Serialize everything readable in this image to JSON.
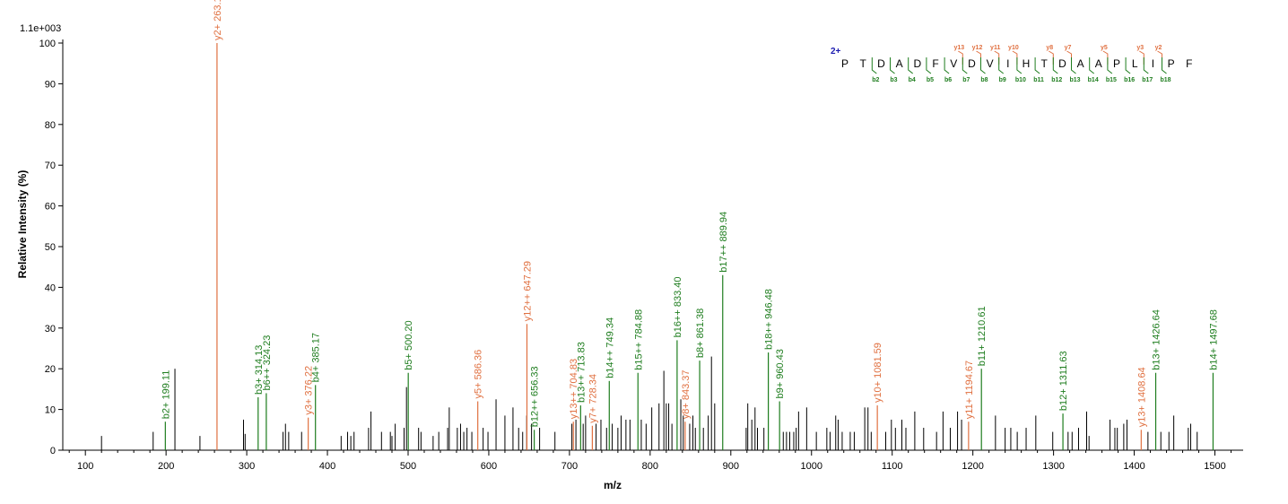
{
  "chart_data": {
    "type": "bar",
    "ylabel": "Relative   Intensity (%)",
    "xlabel": "m/z",
    "scale_label": "1.1e+003",
    "charge_label": "2+",
    "xlim": [
      72,
      1535
    ],
    "ylim": [
      0,
      100
    ],
    "x_ticks": [
      100,
      200,
      300,
      400,
      500,
      600,
      700,
      800,
      900,
      1000,
      1100,
      1200,
      1300,
      1400,
      1500
    ],
    "y_ticks": [
      0,
      10,
      20,
      30,
      40,
      50,
      60,
      70,
      80,
      90,
      100
    ],
    "colors": {
      "b": "#1e7d1e",
      "y": "#e07040",
      "other": "#000000"
    },
    "peptide_residues": [
      "P",
      "T",
      "D",
      "A",
      "D",
      "F",
      "V",
      "D",
      "V",
      "I",
      "H",
      "T",
      "D",
      "A",
      "A",
      "P",
      "L",
      "I",
      "P",
      "F"
    ],
    "b_fragments": [
      {
        "after": 2,
        "label": "b2"
      },
      {
        "after": 3,
        "label": "b3"
      },
      {
        "after": 4,
        "label": "b4"
      },
      {
        "after": 5,
        "label": "b5"
      },
      {
        "after": 6,
        "label": "b6"
      },
      {
        "after": 7,
        "label": "b7"
      },
      {
        "after": 8,
        "label": "b8"
      },
      {
        "after": 9,
        "label": "b9"
      },
      {
        "after": 10,
        "label": "b10"
      },
      {
        "after": 11,
        "label": "b11"
      },
      {
        "after": 12,
        "label": "b12"
      },
      {
        "after": 13,
        "label": "b13"
      },
      {
        "after": 14,
        "label": "b14"
      },
      {
        "after": 15,
        "label": "b15"
      },
      {
        "after": 16,
        "label": "b16"
      },
      {
        "after": 17,
        "label": "b17"
      },
      {
        "after": 18,
        "label": "b18"
      }
    ],
    "y_fragments": [
      {
        "after": 7,
        "label": "y13"
      },
      {
        "after": 8,
        "label": "y12"
      },
      {
        "after": 9,
        "label": "y11"
      },
      {
        "after": 10,
        "label": "y10"
      },
      {
        "after": 12,
        "label": "y8"
      },
      {
        "after": 13,
        "label": "y7"
      },
      {
        "after": 15,
        "label": "y5"
      },
      {
        "after": 17,
        "label": "y3"
      },
      {
        "after": 18,
        "label": "y2"
      }
    ],
    "labeled_peaks": [
      {
        "mz": 199.11,
        "intensity": 7,
        "ion": "b",
        "label": "b2+ 199.11"
      },
      {
        "mz": 263.14,
        "intensity": 100,
        "ion": "y",
        "label": "y2+ 263.14"
      },
      {
        "mz": 314.13,
        "intensity": 13,
        "ion": "b",
        "label": "b3+ 314.13"
      },
      {
        "mz": 324.23,
        "intensity": 14,
        "ion": "b",
        "label": "b6++ 324.23"
      },
      {
        "mz": 376.22,
        "intensity": 8,
        "ion": "y",
        "label": "y3+ 376.22"
      },
      {
        "mz": 385.17,
        "intensity": 16,
        "ion": "b",
        "label": "b4+ 385.17"
      },
      {
        "mz": 500.2,
        "intensity": 19,
        "ion": "b",
        "label": "b5+ 500.20"
      },
      {
        "mz": 586.36,
        "intensity": 12,
        "ion": "y",
        "label": "y5+ 586.36"
      },
      {
        "mz": 647.29,
        "intensity": 31,
        "ion": "y",
        "label": "y12++ 647.29"
      },
      {
        "mz": 656.33,
        "intensity": 5,
        "ion": "b",
        "label": "b12++ 656.33"
      },
      {
        "mz": 704.83,
        "intensity": 7,
        "ion": "y",
        "label": "y13++ 704.83"
      },
      {
        "mz": 713.83,
        "intensity": 11,
        "ion": "b",
        "label": "b13++ 713.83"
      },
      {
        "mz": 728.34,
        "intensity": 6,
        "ion": "y",
        "label": "y7+ 728.34"
      },
      {
        "mz": 749.34,
        "intensity": 17,
        "ion": "b",
        "label": "b14++ 749.34"
      },
      {
        "mz": 784.88,
        "intensity": 19,
        "ion": "b",
        "label": "b15++ 784.88"
      },
      {
        "mz": 833.4,
        "intensity": 27,
        "ion": "b",
        "label": "b16++ 833.40"
      },
      {
        "mz": 843.37,
        "intensity": 7,
        "ion": "y",
        "label": "y8+ 843.37"
      },
      {
        "mz": 861.38,
        "intensity": 22,
        "ion": "b",
        "label": "b8+ 861.38"
      },
      {
        "mz": 889.94,
        "intensity": 43,
        "ion": "b",
        "label": "b17++ 889.94"
      },
      {
        "mz": 946.48,
        "intensity": 24,
        "ion": "b",
        "label": "b18++ 946.48"
      },
      {
        "mz": 960.43,
        "intensity": 12,
        "ion": "b",
        "label": "b9+ 960.43"
      },
      {
        "mz": 1081.59,
        "intensity": 11,
        "ion": "y",
        "label": "y10+ 1081.59"
      },
      {
        "mz": 1194.67,
        "intensity": 7,
        "ion": "y",
        "label": "y11+ 1194.67"
      },
      {
        "mz": 1210.61,
        "intensity": 20,
        "ion": "b",
        "label": "b11+ 1210.61"
      },
      {
        "mz": 1311.63,
        "intensity": 9,
        "ion": "b",
        "label": "b12+ 1311.63"
      },
      {
        "mz": 1408.64,
        "intensity": 5,
        "ion": "y",
        "label": "y13+ 1408.64"
      },
      {
        "mz": 1426.64,
        "intensity": 19,
        "ion": "b",
        "label": "b13+ 1426.64"
      },
      {
        "mz": 1497.68,
        "intensity": 19,
        "ion": "b",
        "label": "b14+ 1497.68"
      }
    ],
    "unlabeled_peaks": [
      {
        "mz": 120,
        "intensity": 3.5
      },
      {
        "mz": 184,
        "intensity": 4.5
      },
      {
        "mz": 211,
        "intensity": 20
      },
      {
        "mz": 242,
        "intensity": 3.5
      },
      {
        "mz": 296,
        "intensity": 7.5
      },
      {
        "mz": 298,
        "intensity": 4
      },
      {
        "mz": 345,
        "intensity": 4.5
      },
      {
        "mz": 348,
        "intensity": 6.5
      },
      {
        "mz": 352,
        "intensity": 4.5
      },
      {
        "mz": 368,
        "intensity": 4.5
      },
      {
        "mz": 417,
        "intensity": 3.5
      },
      {
        "mz": 425,
        "intensity": 4.5
      },
      {
        "mz": 429,
        "intensity": 3.5
      },
      {
        "mz": 433,
        "intensity": 4.5
      },
      {
        "mz": 451,
        "intensity": 5.5
      },
      {
        "mz": 454,
        "intensity": 9.5
      },
      {
        "mz": 467,
        "intensity": 4.5
      },
      {
        "mz": 478,
        "intensity": 4.5
      },
      {
        "mz": 480,
        "intensity": 3.5
      },
      {
        "mz": 484,
        "intensity": 6.5
      },
      {
        "mz": 495,
        "intensity": 5.5
      },
      {
        "mz": 498,
        "intensity": 15.5
      },
      {
        "mz": 513,
        "intensity": 5.5
      },
      {
        "mz": 516,
        "intensity": 4.5
      },
      {
        "mz": 531,
        "intensity": 3.5
      },
      {
        "mz": 538,
        "intensity": 4.5
      },
      {
        "mz": 549,
        "intensity": 5.5
      },
      {
        "mz": 551,
        "intensity": 10.5
      },
      {
        "mz": 561,
        "intensity": 5.5
      },
      {
        "mz": 565,
        "intensity": 6.5
      },
      {
        "mz": 569,
        "intensity": 4.5
      },
      {
        "mz": 573,
        "intensity": 5.5
      },
      {
        "mz": 579,
        "intensity": 4.5
      },
      {
        "mz": 593,
        "intensity": 5.5
      },
      {
        "mz": 599,
        "intensity": 4.5
      },
      {
        "mz": 609,
        "intensity": 12.5
      },
      {
        "mz": 620,
        "intensity": 8.5
      },
      {
        "mz": 630,
        "intensity": 10.5
      },
      {
        "mz": 637,
        "intensity": 5.5
      },
      {
        "mz": 642,
        "intensity": 4.5
      },
      {
        "mz": 647,
        "intensity": 8.5
      },
      {
        "mz": 653,
        "intensity": 6.5
      },
      {
        "mz": 663,
        "intensity": 5.5
      },
      {
        "mz": 682,
        "intensity": 4.5
      },
      {
        "mz": 703,
        "intensity": 6.5
      },
      {
        "mz": 708,
        "intensity": 7.5
      },
      {
        "mz": 717,
        "intensity": 6.5
      },
      {
        "mz": 720,
        "intensity": 8.5
      },
      {
        "mz": 733,
        "intensity": 6.5
      },
      {
        "mz": 739,
        "intensity": 7.5
      },
      {
        "mz": 746,
        "intensity": 5.5
      },
      {
        "mz": 753,
        "intensity": 6.5
      },
      {
        "mz": 760,
        "intensity": 5.5
      },
      {
        "mz": 764,
        "intensity": 8.5
      },
      {
        "mz": 770,
        "intensity": 7.5
      },
      {
        "mz": 775,
        "intensity": 7.5
      },
      {
        "mz": 789,
        "intensity": 7.5
      },
      {
        "mz": 795,
        "intensity": 6.5
      },
      {
        "mz": 802,
        "intensity": 10.5
      },
      {
        "mz": 811,
        "intensity": 11.5
      },
      {
        "mz": 817,
        "intensity": 19.5
      },
      {
        "mz": 820,
        "intensity": 11.5
      },
      {
        "mz": 823,
        "intensity": 11.5
      },
      {
        "mz": 827,
        "intensity": 6.5
      },
      {
        "mz": 838,
        "intensity": 12.5
      },
      {
        "mz": 841,
        "intensity": 8.5
      },
      {
        "mz": 849,
        "intensity": 6.5
      },
      {
        "mz": 853,
        "intensity": 8.5
      },
      {
        "mz": 856,
        "intensity": 5.5
      },
      {
        "mz": 866,
        "intensity": 5.5
      },
      {
        "mz": 872,
        "intensity": 8.5
      },
      {
        "mz": 876,
        "intensity": 23
      },
      {
        "mz": 880,
        "intensity": 11.5
      },
      {
        "mz": 919,
        "intensity": 5.5
      },
      {
        "mz": 921,
        "intensity": 11.5
      },
      {
        "mz": 926,
        "intensity": 7.5
      },
      {
        "mz": 930,
        "intensity": 10.5
      },
      {
        "mz": 933,
        "intensity": 5.5
      },
      {
        "mz": 941,
        "intensity": 5.5
      },
      {
        "mz": 965,
        "intensity": 4.5
      },
      {
        "mz": 969,
        "intensity": 4.5
      },
      {
        "mz": 973,
        "intensity": 4.5
      },
      {
        "mz": 978,
        "intensity": 4.5
      },
      {
        "mz": 981,
        "intensity": 5.5
      },
      {
        "mz": 984,
        "intensity": 9.5
      },
      {
        "mz": 994,
        "intensity": 10.5
      },
      {
        "mz": 1006,
        "intensity": 4.5
      },
      {
        "mz": 1019,
        "intensity": 5.5
      },
      {
        "mz": 1023,
        "intensity": 4.5
      },
      {
        "mz": 1030,
        "intensity": 8.5
      },
      {
        "mz": 1033,
        "intensity": 7.5
      },
      {
        "mz": 1038,
        "intensity": 4.5
      },
      {
        "mz": 1048,
        "intensity": 4.5
      },
      {
        "mz": 1053,
        "intensity": 4.5
      },
      {
        "mz": 1066,
        "intensity": 10.5
      },
      {
        "mz": 1070,
        "intensity": 10.5
      },
      {
        "mz": 1074,
        "intensity": 4.5
      },
      {
        "mz": 1092,
        "intensity": 4.5
      },
      {
        "mz": 1099,
        "intensity": 7.5
      },
      {
        "mz": 1104,
        "intensity": 5.5
      },
      {
        "mz": 1112,
        "intensity": 7.5
      },
      {
        "mz": 1117,
        "intensity": 5.5
      },
      {
        "mz": 1128,
        "intensity": 9.5
      },
      {
        "mz": 1139,
        "intensity": 5.5
      },
      {
        "mz": 1155,
        "intensity": 4.5
      },
      {
        "mz": 1163,
        "intensity": 9.5
      },
      {
        "mz": 1172,
        "intensity": 5.5
      },
      {
        "mz": 1181,
        "intensity": 9.5
      },
      {
        "mz": 1186,
        "intensity": 7.5
      },
      {
        "mz": 1228,
        "intensity": 8.5
      },
      {
        "mz": 1240,
        "intensity": 5.5
      },
      {
        "mz": 1247,
        "intensity": 5.5
      },
      {
        "mz": 1255,
        "intensity": 4.5
      },
      {
        "mz": 1266,
        "intensity": 5.5
      },
      {
        "mz": 1278,
        "intensity": 8.5
      },
      {
        "mz": 1299,
        "intensity": 4.5
      },
      {
        "mz": 1318,
        "intensity": 4.5
      },
      {
        "mz": 1323,
        "intensity": 4.5
      },
      {
        "mz": 1331,
        "intensity": 5.5
      },
      {
        "mz": 1341,
        "intensity": 9.5
      },
      {
        "mz": 1344,
        "intensity": 3.5
      },
      {
        "mz": 1370,
        "intensity": 7.5
      },
      {
        "mz": 1376,
        "intensity": 5.5
      },
      {
        "mz": 1379,
        "intensity": 5.5
      },
      {
        "mz": 1387,
        "intensity": 6.5
      },
      {
        "mz": 1391,
        "intensity": 7.5
      },
      {
        "mz": 1417,
        "intensity": 4.5
      },
      {
        "mz": 1433,
        "intensity": 4.5
      },
      {
        "mz": 1443,
        "intensity": 4.5
      },
      {
        "mz": 1449,
        "intensity": 8.5
      },
      {
        "mz": 1467,
        "intensity": 5.5
      },
      {
        "mz": 1470,
        "intensity": 6.5
      },
      {
        "mz": 1478,
        "intensity": 4.5
      }
    ]
  }
}
